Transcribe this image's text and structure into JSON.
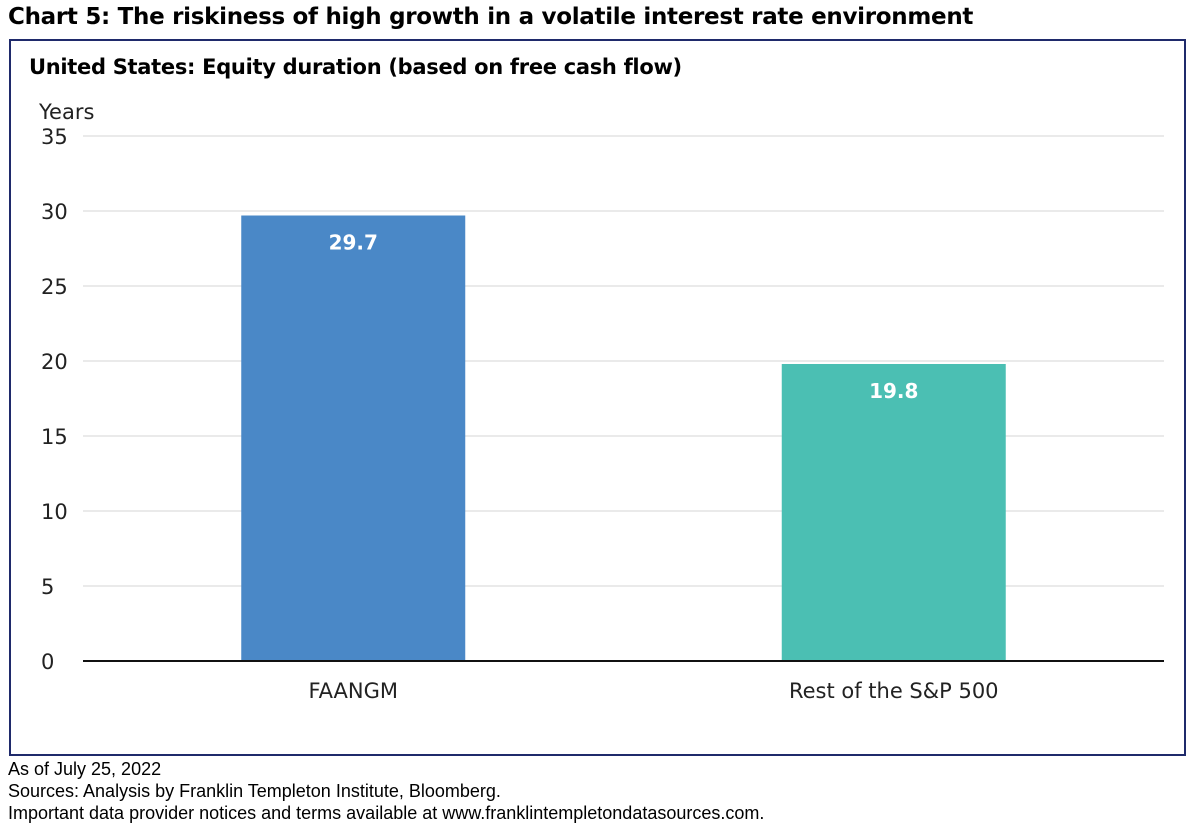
{
  "figure_title": "Chart 5: The riskiness of high growth in a volatile interest rate environment",
  "footnotes": {
    "as_of": "As of July 25, 2022",
    "sources": "Sources: Analysis by Franklin Templeton Institute, Bloomberg.",
    "notice": "Important data provider notices and terms available at www.franklintempletondatasources.com."
  },
  "chart_data": {
    "type": "bar",
    "title": "United States: Equity duration (based on free cash flow)",
    "ylabel": "Years",
    "xlabel": "",
    "ylim": [
      0,
      35
    ],
    "yticks": [
      0,
      5,
      10,
      15,
      20,
      25,
      30,
      35
    ],
    "grid": true,
    "categories": [
      "FAANGM",
      "Rest of the S&P 500"
    ],
    "values": [
      29.7,
      19.8
    ],
    "data_labels": [
      "29.7",
      "19.8"
    ],
    "colors": [
      "#4a88c7",
      "#4bbfb3"
    ]
  }
}
